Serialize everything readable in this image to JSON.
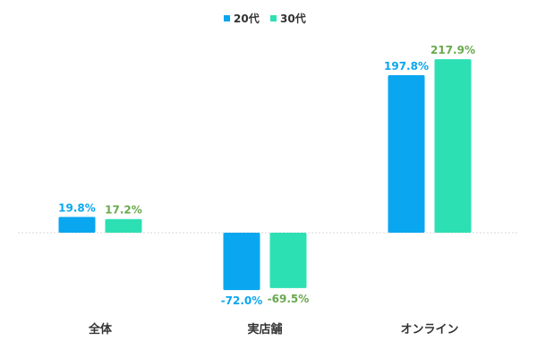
{
  "chart_data": {
    "type": "bar",
    "title": "",
    "xlabel": "",
    "ylabel": "",
    "categories": [
      "全体",
      "実店舗",
      "オンライン"
    ],
    "series": [
      {
        "name": "20代",
        "values": [
          19.8,
          -72.0,
          197.8
        ],
        "labels": [
          "19.8%",
          "-72.0%",
          "197.8%"
        ],
        "color": "#0aa6f0",
        "label_color": "#0aa6f0"
      },
      {
        "name": "30代",
        "values": [
          17.2,
          -69.5,
          217.9
        ],
        "labels": [
          "17.2%",
          "-69.5%",
          "217.9%"
        ],
        "color": "#2de0b4",
        "label_color": "#6aa84f"
      }
    ],
    "ylim": [
      -100,
      250
    ],
    "grid": false,
    "legend_position": "top-center"
  }
}
